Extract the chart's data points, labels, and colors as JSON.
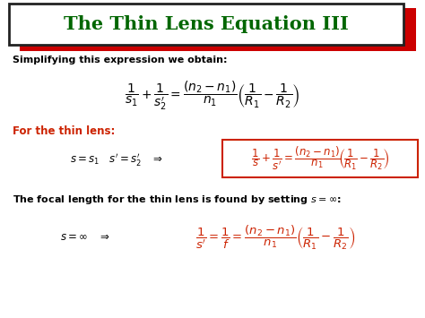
{
  "title": "The Thin Lens Equation III",
  "title_color": "#006600",
  "title_border_color": "#222222",
  "title_shadow_color": "#cc0000",
  "bg_color": "#ffffff",
  "text1": "Simplifying this expression we obtain:",
  "text2": "For the thin lens:",
  "text2_color": "#cc2200",
  "text3": "The focal length for the thin lens is found by setting $s = \\infty$:",
  "eq_color_black": "#000000",
  "eq_color_red": "#cc2200",
  "box2_border": "#cc2200",
  "figsize": [
    4.74,
    3.55
  ],
  "dpi": 100
}
